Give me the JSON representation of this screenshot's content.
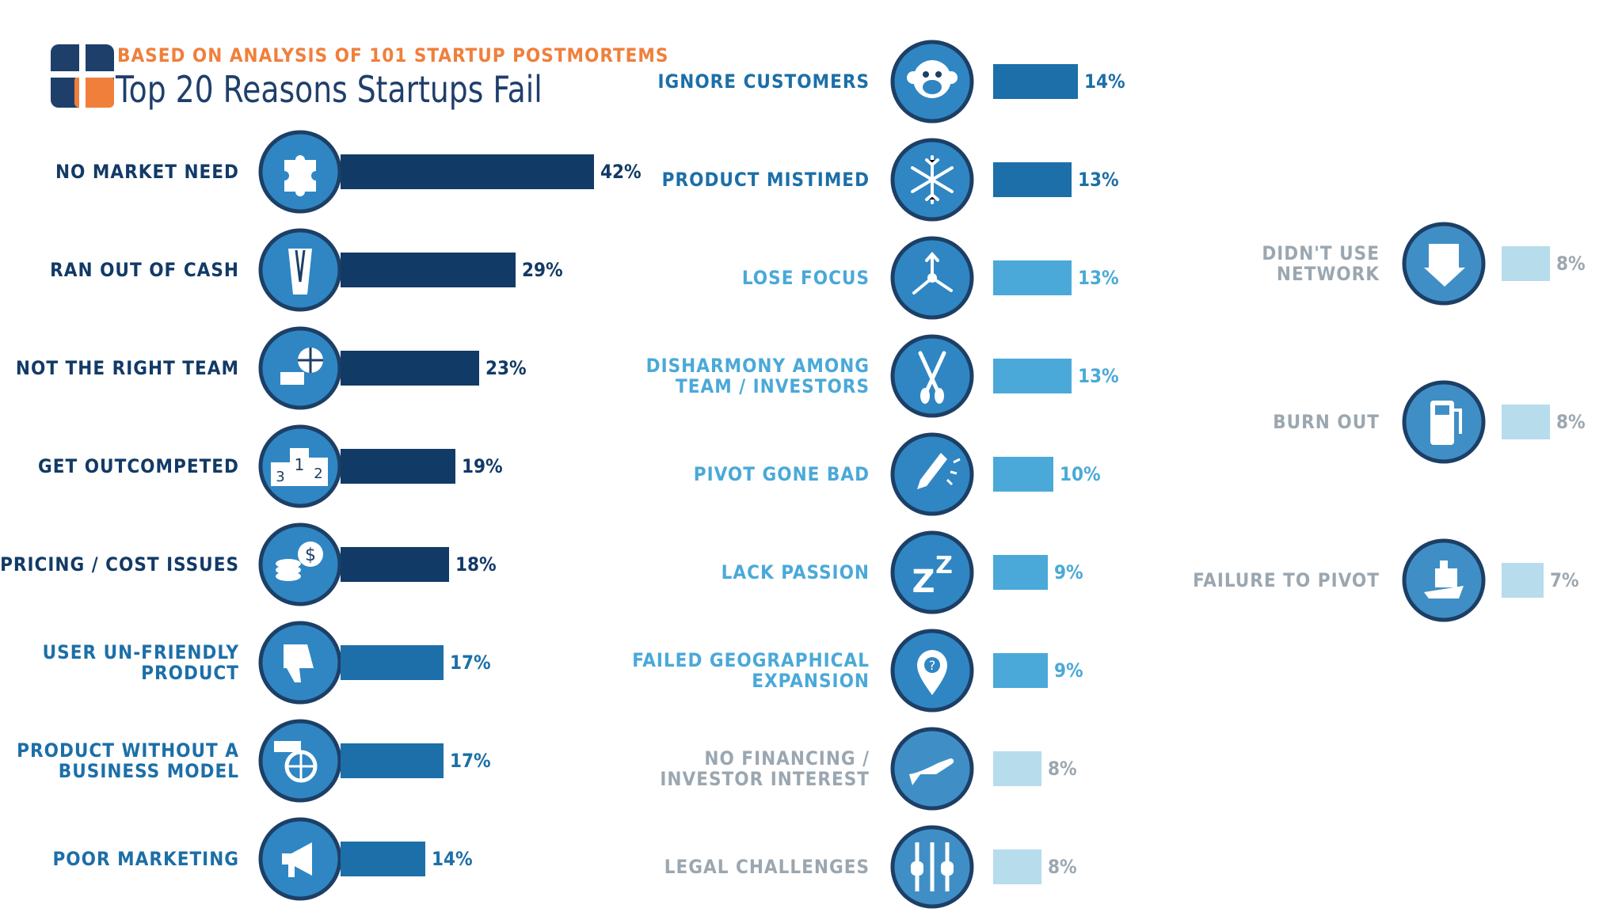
{
  "header": {
    "subtitle": "BASED ON ANALYSIS OF 101 STARTUP POSTMORTEMS",
    "title": "Top 20 Reasons Startups Fail"
  },
  "colors": {
    "navy": "#123a66",
    "mid": "#1c6fa8",
    "light": "#4aa9d8",
    "pale": "#b7dcec",
    "pale_text": "#9ba7b0",
    "icon_fill": "#2f86c3",
    "icon_stroke": "#1d3f66",
    "orange": "#f07f3c"
  },
  "chart_data": {
    "type": "bar",
    "title": "Top 20 Reasons Startups Fail",
    "subtitle": "BASED ON ANALYSIS OF 101 STARTUP POSTMORTEMS",
    "unit": "%",
    "xlim": [
      0,
      42
    ],
    "items": [
      {
        "label": "NO MARKET NEED",
        "value": 42,
        "text": "42%",
        "icon": "puzzle-icon",
        "tier": "navy"
      },
      {
        "label": "RAN OUT OF CASH",
        "value": 29,
        "text": "29%",
        "icon": "empty-pocket-icon",
        "tier": "navy"
      },
      {
        "label": "NOT THE RIGHT TEAM",
        "value": 23,
        "text": "23%",
        "icon": "sports-gear-icon",
        "tier": "navy"
      },
      {
        "label": "GET OUTCOMPETED",
        "value": 19,
        "text": "19%",
        "icon": "podium-icon",
        "tier": "navy"
      },
      {
        "label": "PRICING / COST ISSUES",
        "value": 18,
        "text": "18%",
        "icon": "coins-icon",
        "tier": "navy"
      },
      {
        "label": "USER UN-FRIENDLY\nPRODUCT",
        "value": 17,
        "text": "17%",
        "icon": "thumbs-down-icon",
        "tier": "mid"
      },
      {
        "label": "PRODUCT WITHOUT A\nBUSINESS MODEL",
        "value": 17,
        "text": "17%",
        "icon": "cart-icon",
        "tier": "mid"
      },
      {
        "label": "POOR MARKETING",
        "value": 14,
        "text": "14%",
        "icon": "megaphone-icon",
        "tier": "mid"
      },
      {
        "label": "IGNORE CUSTOMERS",
        "value": 14,
        "text": "14%",
        "icon": "monkey-icon",
        "tier": "mid"
      },
      {
        "label": "PRODUCT MISTIMED",
        "value": 13,
        "text": "13%",
        "icon": "snowflake-icon",
        "tier": "mid"
      },
      {
        "label": "LOSE FOCUS",
        "value": 13,
        "text": "13%",
        "icon": "arrows-icon",
        "tier": "light"
      },
      {
        "label": "DISHARMONY AMONG\nTEAM / INVESTORS",
        "value": 13,
        "text": "13%",
        "icon": "oars-icon",
        "tier": "light"
      },
      {
        "label": "PIVOT GONE BAD",
        "value": 10,
        "text": "10%",
        "icon": "broken-pencil-icon",
        "tier": "light"
      },
      {
        "label": "LACK PASSION",
        "value": 9,
        "text": "9%",
        "icon": "sleep-icon",
        "tier": "light"
      },
      {
        "label": "FAILED GEOGRAPHICAL\nEXPANSION",
        "value": 9,
        "text": "9%",
        "icon": "map-pin-icon",
        "tier": "light"
      },
      {
        "label": "NO FINANCING /\nINVESTOR INTEREST",
        "value": 8,
        "text": "8%",
        "icon": "open-hand-icon",
        "tier": "pale"
      },
      {
        "label": "LEGAL CHALLENGES",
        "value": 8,
        "text": "8%",
        "icon": "jail-icon",
        "tier": "pale"
      },
      {
        "label": "DIDN'T USE\nNETWORK",
        "value": 8,
        "text": "8%",
        "icon": "network-icon",
        "tier": "pale"
      },
      {
        "label": "BURN OUT",
        "value": 8,
        "text": "8%",
        "icon": "gas-pump-icon",
        "tier": "pale"
      },
      {
        "label": "FAILURE TO PIVOT",
        "value": 7,
        "text": "7%",
        "icon": "ship-icon",
        "tier": "pale"
      }
    ]
  }
}
